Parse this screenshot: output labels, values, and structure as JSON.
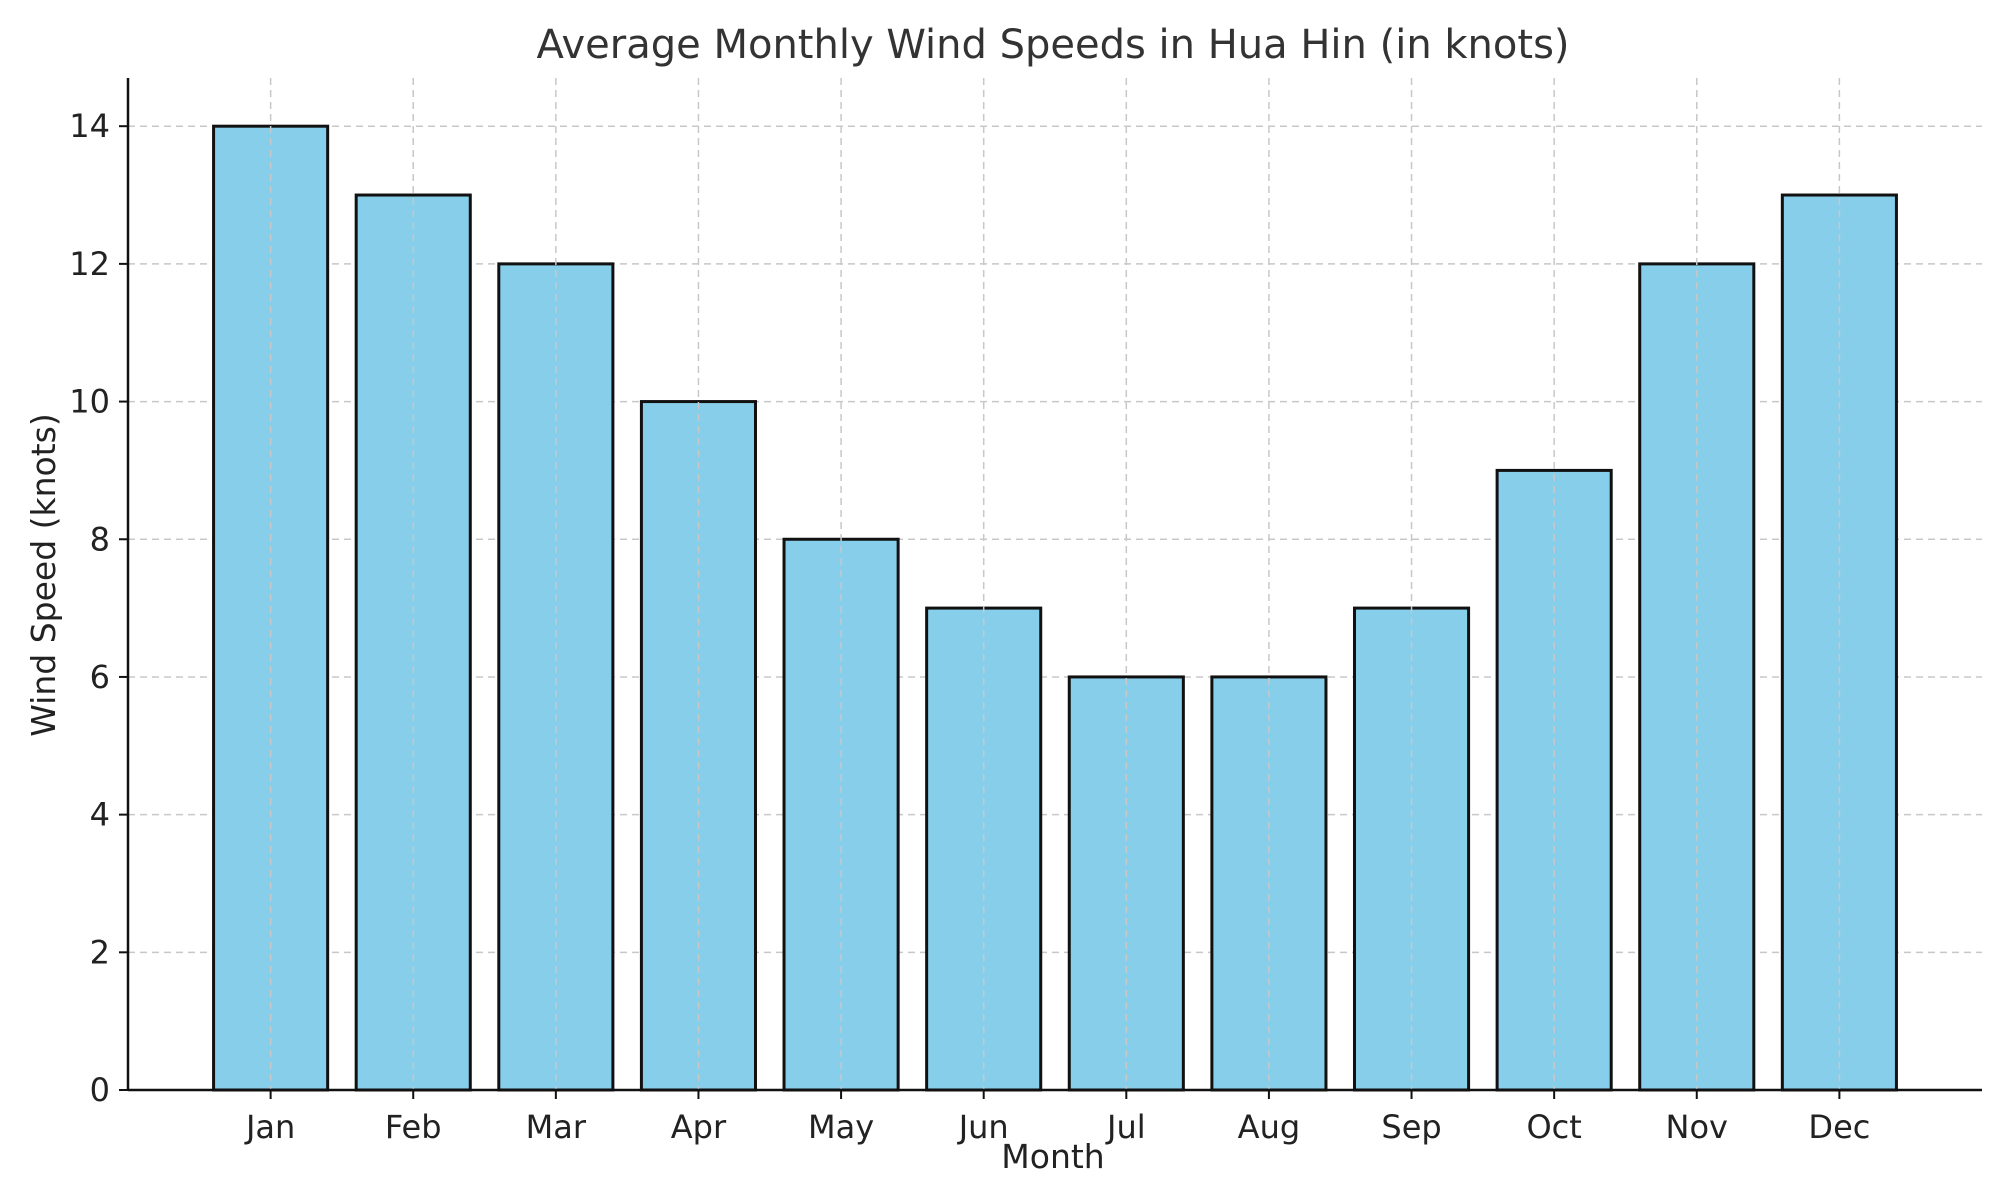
{
  "chart_data": {
    "type": "bar",
    "title": "Average Monthly Wind Speeds in Hua Hin (in knots)",
    "xlabel": "Month",
    "ylabel": "Wind Speed (knots)",
    "categories": [
      "Jan",
      "Feb",
      "Mar",
      "Apr",
      "May",
      "Jun",
      "Jul",
      "Aug",
      "Sep",
      "Oct",
      "Nov",
      "Dec"
    ],
    "values": [
      14,
      13,
      12,
      10,
      8,
      7,
      6,
      6,
      7,
      9,
      12,
      13
    ],
    "ylim": [
      0,
      14.7
    ],
    "yticks": [
      0,
      2,
      4,
      6,
      8,
      10,
      12,
      14
    ],
    "grid": true,
    "bar_color": "#87CEEB",
    "edge_color": "#111111"
  }
}
